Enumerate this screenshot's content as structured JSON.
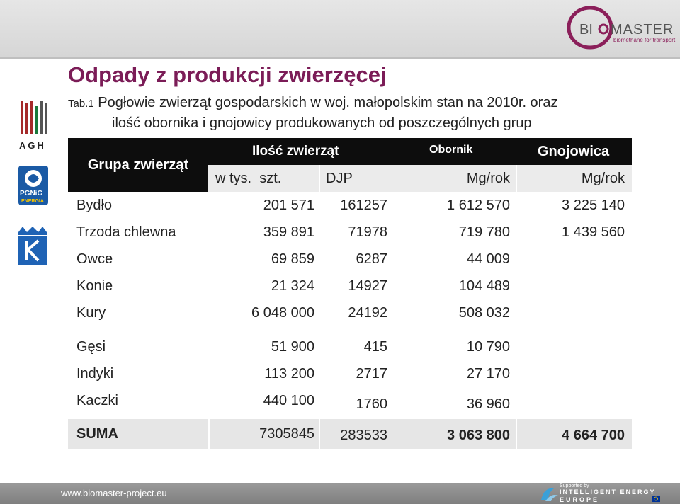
{
  "header": {
    "title": "Odpady z produkcji zwierzęcej",
    "subtitle_tab": "Tab.1",
    "subtitle_line1": " Pogłowie zwierząt gospodarskich w woj. małopolskim stan na 2010r. oraz",
    "subtitle_line2": "ilość obornika i gnojowicy produkowanych od poszczególnych grup"
  },
  "logos": {
    "biomaster_text": "BI",
    "biomaster_text2": "MASTER",
    "biomaster_tagline": "biomethane for transport",
    "agh": "AGH",
    "pgnig": "PGNiG",
    "pgnig_sub": "ENERGIA"
  },
  "table": {
    "group_header": "Grupa zwierząt",
    "count_header": "Ilość zwierząt",
    "manure_header": "Obornik",
    "slurry_header": "Gnojowica",
    "unit_count": "w tys.  szt.",
    "unit_djp": "DJP",
    "unit_manure": "Mg/rok",
    "unit_slurry": "Mg/rok",
    "rows": [
      {
        "name": "Bydło",
        "count": "201 571",
        "djp": "161257",
        "manure": "1 612 570",
        "slurry": "3 225 140"
      },
      {
        "name": "Trzoda chlewna",
        "count": "359 891",
        "djp": "71978",
        "manure": "719 780",
        "slurry": "1 439 560"
      },
      {
        "name": "Owce",
        "count": "69 859",
        "djp": "6287",
        "manure": "44 009",
        "slurry": ""
      },
      {
        "name": "Konie",
        "count": "21 324",
        "djp": "14927",
        "manure": "104 489",
        "slurry": ""
      },
      {
        "name": "Kury",
        "count": "6 048 000",
        "djp": "24192",
        "manure": "508 032",
        "slurry": ""
      },
      {
        "name": "Gęsi",
        "count": "51 900",
        "djp": "415",
        "manure": "10 790",
        "slurry": ""
      },
      {
        "name": "Indyki",
        "count": "113 200",
        "djp": "2717",
        "manure": "27 170",
        "slurry": ""
      },
      {
        "name": "Kaczki",
        "count": "440 100",
        "djp": "1760",
        "manure": "36 960",
        "slurry": ""
      }
    ],
    "total": {
      "name": "SUMA",
      "count": "7305845",
      "djp": "283533",
      "manure": "3 063 800",
      "slurry": "4 664 700"
    }
  },
  "footer": {
    "url": "www.biomaster-project.eu",
    "supported": "Supported by",
    "ie_line1": "INTELLIGENT ENERGY",
    "ie_line2": "EUROPE"
  }
}
